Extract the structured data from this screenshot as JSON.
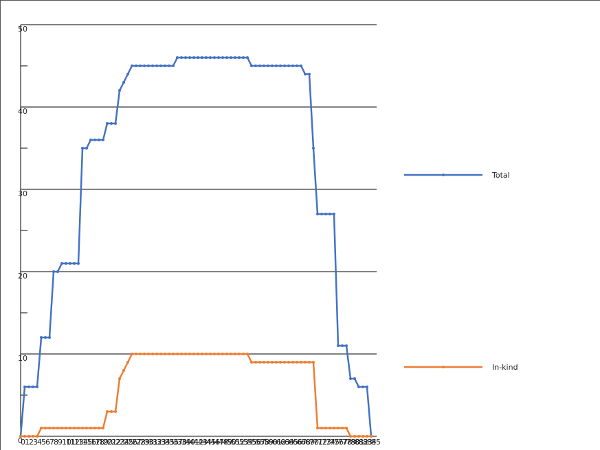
{
  "chart_data": {
    "type": "line",
    "categories": [
      "0",
      "1",
      "2",
      "3",
      "4",
      "5",
      "6",
      "7",
      "8",
      "9",
      "10",
      "11",
      "12",
      "13",
      "14",
      "15",
      "16",
      "17",
      "18",
      "19",
      "20",
      "21",
      "22",
      "23",
      "24",
      "25",
      "26",
      "27",
      "28",
      "29",
      "30",
      "31",
      "32",
      "33",
      "34",
      "35",
      "36",
      "37",
      "38",
      "39",
      "40",
      "41",
      "42",
      "43",
      "44",
      "45",
      "46",
      "47",
      "48",
      "49",
      "50",
      "51",
      "52",
      "53",
      "54",
      "55",
      "56",
      "57",
      "58",
      "59",
      "60",
      "61",
      "62",
      "63",
      "64",
      "65",
      "66",
      "67",
      "68",
      "69",
      "70",
      "71",
      "72",
      "73",
      "74",
      "75",
      "76",
      "77",
      "78",
      "79",
      "80",
      "81",
      "82",
      "83",
      "84",
      "85"
    ],
    "series": [
      {
        "name": "Total",
        "color": "#4472c4",
        "values": [
          0,
          6,
          6,
          6,
          6,
          12,
          12,
          12,
          20,
          20,
          21,
          21,
          21,
          21,
          21,
          35,
          35,
          36,
          36,
          36,
          36,
          38,
          38,
          38,
          42,
          43,
          44,
          45,
          45,
          45,
          45,
          45,
          45,
          45,
          45,
          45,
          45,
          45,
          46,
          46,
          46,
          46,
          46,
          46,
          46,
          46,
          46,
          46,
          46,
          46,
          46,
          46,
          46,
          46,
          46,
          46,
          45,
          45,
          45,
          45,
          45,
          45,
          45,
          45,
          45,
          45,
          45,
          45,
          45,
          44,
          44,
          35,
          27,
          27,
          27,
          27,
          27,
          11,
          11,
          11,
          7,
          7,
          6,
          6,
          6,
          0
        ]
      },
      {
        "name": "In-kind",
        "color": "#ed7d31",
        "values": [
          0,
          0,
          0,
          0,
          0,
          1,
          1,
          1,
          1,
          1,
          1,
          1,
          1,
          1,
          1,
          1,
          1,
          1,
          1,
          1,
          1,
          3,
          3,
          3,
          7,
          8,
          9,
          10,
          10,
          10,
          10,
          10,
          10,
          10,
          10,
          10,
          10,
          10,
          10,
          10,
          10,
          10,
          10,
          10,
          10,
          10,
          10,
          10,
          10,
          10,
          10,
          10,
          10,
          10,
          10,
          10,
          9,
          9,
          9,
          9,
          9,
          9,
          9,
          9,
          9,
          9,
          9,
          9,
          9,
          9,
          9,
          9,
          1,
          1,
          1,
          1,
          1,
          1,
          1,
          1,
          0,
          0,
          0,
          0,
          0,
          0
        ]
      }
    ],
    "ylim": [
      0,
      50
    ],
    "yticks": [
      0,
      10,
      20,
      30,
      40,
      50
    ],
    "minor_yticks": [
      5,
      15,
      25,
      35,
      45
    ],
    "grid": true
  }
}
